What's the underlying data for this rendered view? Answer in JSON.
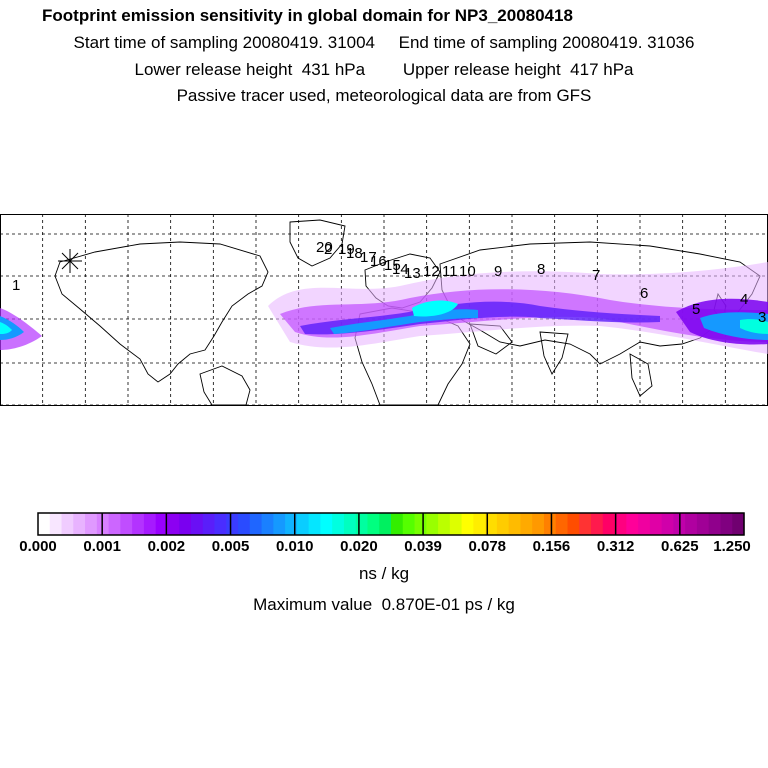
{
  "header": {
    "title": "Footprint emission sensitivity in global domain for NP3_20080418",
    "sampling": "Start time of sampling 20080419. 31004     End time of sampling 20080419. 31036",
    "release": "Lower release height  431 hPa        Upper release height  417 hPa",
    "note": "Passive tracer used, meteorological data are from GFS"
  },
  "map": {
    "trajectory_labels": [
      "1",
      "2",
      "3",
      "4",
      "5",
      "6",
      "7",
      "8",
      "9",
      "10",
      "11",
      "12",
      "13",
      "14",
      "15",
      "16",
      "17",
      "18",
      "19",
      "20"
    ],
    "colors": {
      "land_outline": "#000000",
      "grid": "#000000"
    }
  },
  "colorbar": {
    "ticks": [
      "0.000",
      "0.001",
      "0.002",
      "0.005",
      "0.010",
      "0.020",
      "0.039",
      "0.078",
      "0.156",
      "0.312",
      "0.625",
      "1.250"
    ],
    "colors": [
      "#ffffff",
      "#f8e6ff",
      "#f0ccff",
      "#e8b3ff",
      "#e099ff",
      "#d880ff",
      "#cc66ff",
      "#c04dff",
      "#b333ff",
      "#a61aff",
      "#9900ff",
      "#8c00f2",
      "#7a00f0",
      "#6a0ff5",
      "#5a1efa",
      "#4a2dff",
      "#3a3cff",
      "#2a4bff",
      "#1f66ff",
      "#1a80ff",
      "#1599ff",
      "#10b3ff",
      "#0acdff",
      "#05e6ff",
      "#00ffff",
      "#00ffe0",
      "#00ffc0",
      "#00ffa0",
      "#00ff80",
      "#00f060",
      "#33ee00",
      "#55ff00",
      "#77ff00",
      "#99ff00",
      "#bbff00",
      "#ddff00",
      "#ffff00",
      "#ffee00",
      "#ffdd00",
      "#ffcc00",
      "#ffbb00",
      "#ffaa00",
      "#ff9900",
      "#ff8000",
      "#ff6600",
      "#ff4d00",
      "#ff3333",
      "#ff1a4d",
      "#ff0066",
      "#ff0080",
      "#ff0099",
      "#f000a0",
      "#e000a6",
      "#d000aa",
      "#c000aa",
      "#b000a0",
      "#a00096",
      "#90008c",
      "#800080",
      "#700070"
    ],
    "units": "ns / kg",
    "max_value": "Maximum value  0.870E-01 ps / kg"
  }
}
